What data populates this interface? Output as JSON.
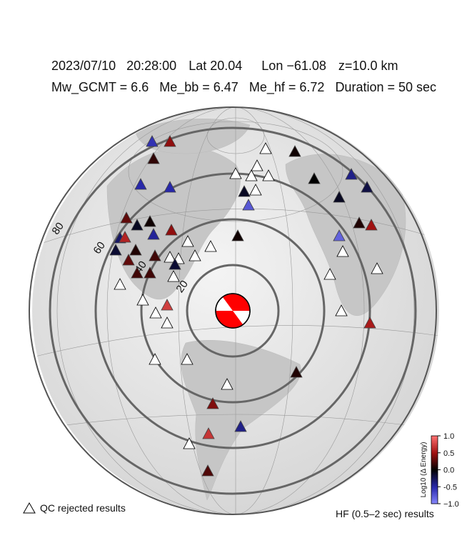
{
  "header": {
    "line1": [
      "2023/07/10",
      "20:28:00",
      "Lat 20.04",
      "Lon −61.08",
      "z=10.0 km"
    ],
    "line2": [
      "Mw_GCMT = 6.6",
      "Me_bb = 6.47",
      "Me_hf = 6.72",
      "Duration = 50 sec"
    ]
  },
  "distance_rings": [
    20,
    40,
    60,
    80
  ],
  "stations": [
    -0.55,
    0.45,
    0.15,
    -0.5,
    -0.5,
    null,
    0.05,
    null,
    null,
    null,
    null,
    0.0,
    -0.4,
    -0.1,
    null,
    -0.75,
    -0.1,
    -0.2,
    0.3,
    -0.1,
    0.05,
    0.45,
    -0.3,
    0.6,
    -0.45,
    -0.15,
    0.1,
    null,
    null,
    0.05,
    0.1,
    0.5,
    -0.8,
    null,
    0.3,
    0.2,
    null,
    null,
    null,
    -0.15,
    0.2,
    0.2,
    null,
    null,
    null,
    null,
    null,
    null,
    0.75,
    null,
    null,
    0.55,
    null,
    null,
    0.1,
    null,
    0.4,
    0.7,
    -0.4,
    null,
    0.25
  ],
  "colorbar": {
    "label": "Log10 (Δ Energy)",
    "lim": [
      -1,
      1
    ],
    "ticks": [
      {
        "value": 1,
        "label": "1.0"
      },
      0.5,
      {
        "value": 0,
        "label": "0.0"
      },
      -0.5,
      {
        "value": -1,
        "label": "−1.0"
      }
    ]
  },
  "legend": {
    "rejected": "QC rejected results",
    "method": "HF (0.5–2 sec) results"
  }
}
